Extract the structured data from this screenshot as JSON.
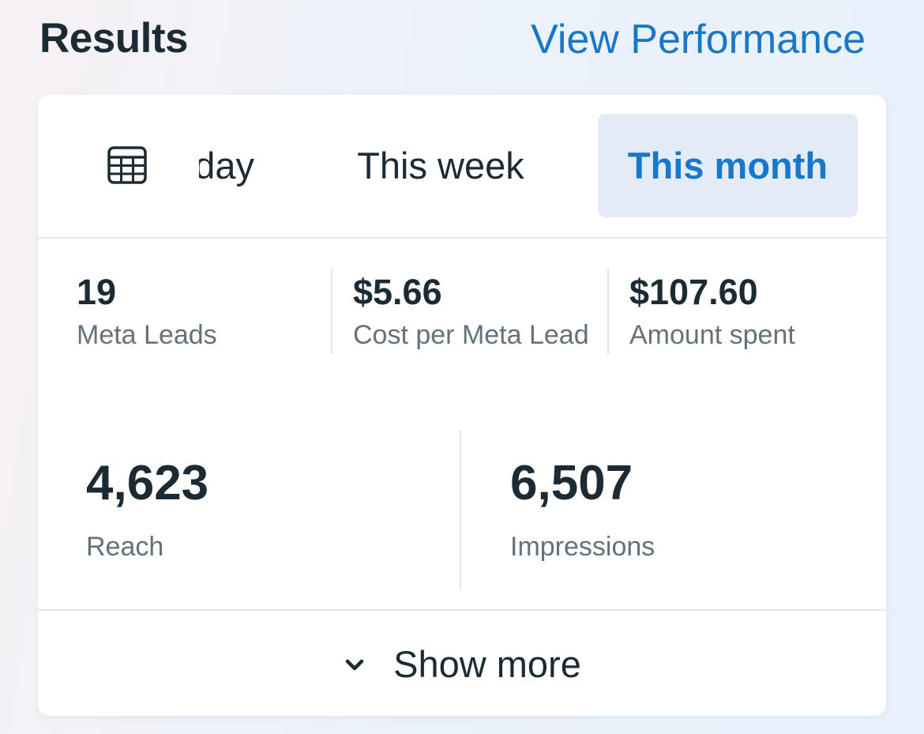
{
  "header": {
    "title": "Results",
    "link": "View Performance"
  },
  "tabs": {
    "calendar_icon": "calendar-grid-icon",
    "items": [
      {
        "label": "Today",
        "visible_text": "day",
        "selected": false
      },
      {
        "label": "This week",
        "selected": false
      },
      {
        "label": "This month",
        "selected": true
      }
    ]
  },
  "metrics_top": [
    {
      "value": "19",
      "label": "Meta Leads"
    },
    {
      "value": "$5.66",
      "label": "Cost per Meta Lead"
    },
    {
      "value": "$107.60",
      "label": "Amount spent"
    }
  ],
  "metrics_bottom": [
    {
      "value": "4,623",
      "label": "Reach"
    },
    {
      "value": "6,507",
      "label": "Impressions"
    }
  ],
  "footer": {
    "icon": "chevron-down-icon",
    "label": "Show more"
  },
  "colors": {
    "accent": "#1877c9",
    "selected_tab_bg": "#e3ecf6",
    "text_primary": "#1c2b33",
    "text_secondary": "#65717a"
  }
}
